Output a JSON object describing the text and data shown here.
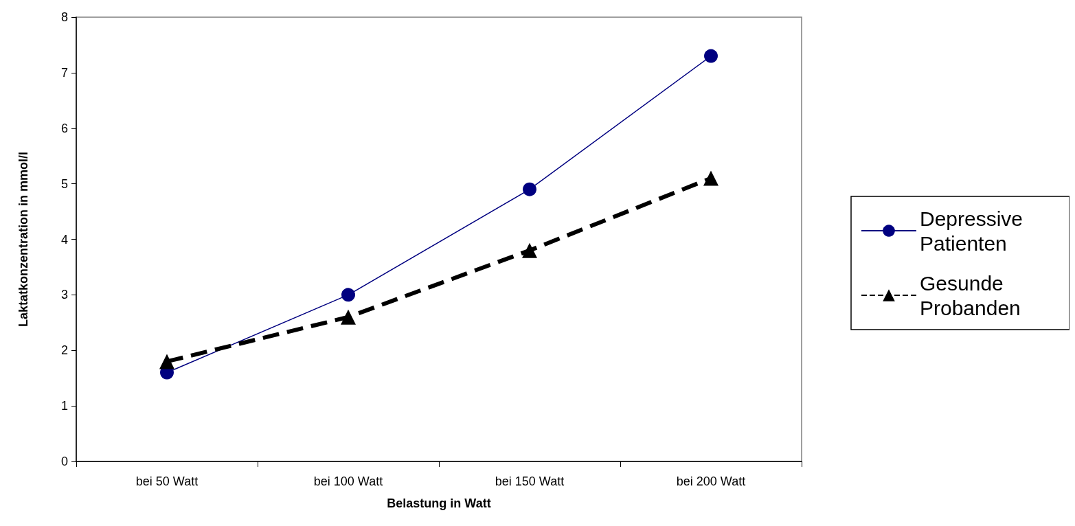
{
  "chart_data": {
    "type": "line",
    "xlabel": "Belastung in Watt",
    "ylabel": "Laktatkonzentration in mmol/l",
    "categories": [
      "bei 50 Watt",
      "bei 100 Watt",
      "bei 150 Watt",
      "bei 200 Watt"
    ],
    "series": [
      {
        "name": "Depressive Patienten",
        "color": "#000080",
        "values": [
          1.6,
          3.0,
          4.9,
          7.3
        ],
        "marker": "circle",
        "line_style": "solid"
      },
      {
        "name": "Gesunde Probanden",
        "color": "#000000",
        "values": [
          1.8,
          2.6,
          3.8,
          5.1
        ],
        "marker": "triangle",
        "line_style": "dashed"
      }
    ],
    "ylim": [
      0,
      8
    ],
    "yticks": [
      0,
      1,
      2,
      3,
      4,
      5,
      6,
      7,
      8
    ],
    "grid": false,
    "legend": "right"
  }
}
